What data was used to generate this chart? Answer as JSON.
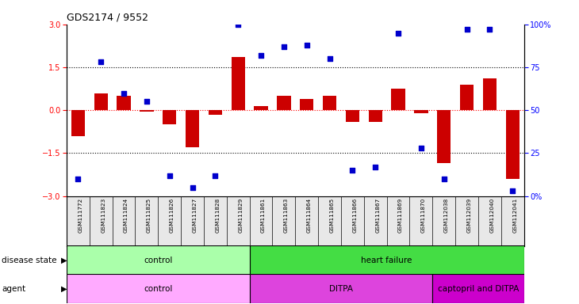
{
  "title": "GDS2174 / 9552",
  "samples": [
    "GSM111772",
    "GSM111823",
    "GSM111824",
    "GSM111825",
    "GSM111826",
    "GSM111827",
    "GSM111828",
    "GSM111829",
    "GSM111861",
    "GSM111863",
    "GSM111864",
    "GSM111865",
    "GSM111866",
    "GSM111867",
    "GSM111869",
    "GSM111870",
    "GSM112038",
    "GSM112039",
    "GSM112040",
    "GSM112041"
  ],
  "log2_ratio": [
    -0.9,
    0.6,
    0.5,
    -0.05,
    -0.5,
    -1.3,
    -0.15,
    1.85,
    0.15,
    0.5,
    0.4,
    0.5,
    -0.4,
    -0.4,
    0.75,
    -0.1,
    -1.85,
    0.9,
    1.1,
    -2.4
  ],
  "pct_rank": [
    10,
    78,
    60,
    55,
    12,
    5,
    12,
    100,
    82,
    87,
    88,
    80,
    15,
    17,
    95,
    28,
    10,
    97,
    97,
    3
  ],
  "disease_state": [
    {
      "label": "control",
      "start": 0,
      "end": 8,
      "color": "#aaffaa"
    },
    {
      "label": "heart failure",
      "start": 8,
      "end": 20,
      "color": "#44dd44"
    }
  ],
  "agent": [
    {
      "label": "control",
      "start": 0,
      "end": 8,
      "color": "#ffaaff"
    },
    {
      "label": "DITPA",
      "start": 8,
      "end": 16,
      "color": "#dd44dd"
    },
    {
      "label": "captopril and DITPA",
      "start": 16,
      "end": 20,
      "color": "#cc00cc"
    }
  ],
  "bar_color": "#cc0000",
  "dot_color": "#0000cc",
  "ylim_left": [
    -3,
    3
  ],
  "ylim_right": [
    0,
    100
  ],
  "yticks_left": [
    -3,
    -1.5,
    0,
    1.5,
    3
  ],
  "yticks_right": [
    0,
    25,
    50,
    75,
    100
  ],
  "ytick_labels_right": [
    "0%",
    "25",
    "50",
    "75",
    "100%"
  ],
  "hlines": [
    -1.5,
    0,
    1.5
  ],
  "hline_colors": [
    "black",
    "red",
    "black"
  ],
  "hline_linestyles": [
    "dotted",
    "dotted",
    "dotted"
  ]
}
